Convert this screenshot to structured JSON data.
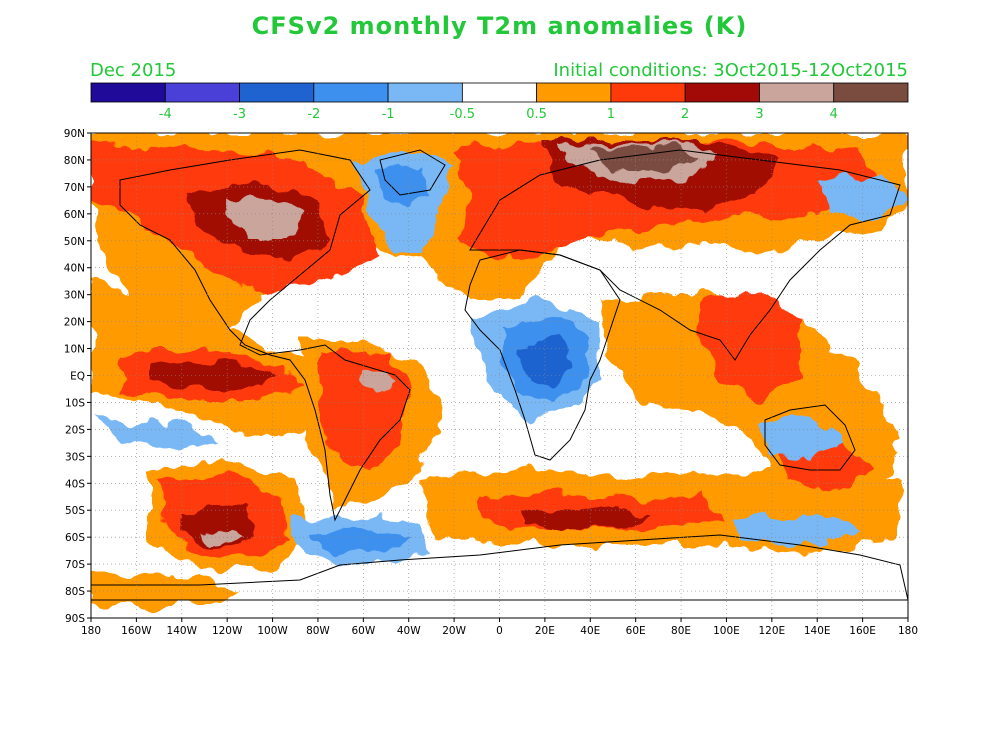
{
  "title": "CFSv2 monthly T2m anomalies (K)",
  "month_label": "Dec 2015",
  "initial_conditions": "Initial conditions: 3Oct2015-12Oct2015",
  "colorbar": {
    "bins": [
      {
        "color": "#1f0a9a"
      },
      {
        "color": "#4a3fd6"
      },
      {
        "color": "#1f63d0"
      },
      {
        "color": "#3d90ee"
      },
      {
        "color": "#7ab8f5"
      },
      {
        "color": "#ffffff"
      },
      {
        "color": "#ff9a00"
      },
      {
        "color": "#ff3a0a"
      },
      {
        "color": "#a10a06"
      },
      {
        "color": "#c9a59c"
      },
      {
        "color": "#7a4c40"
      }
    ],
    "labels": [
      "-4",
      "-3",
      "-2",
      "-1",
      "-0.5",
      "0.5",
      "1",
      "2",
      "3",
      "4"
    ]
  },
  "axes": {
    "lat_labels": [
      "90N",
      "80N",
      "70N",
      "60N",
      "50N",
      "40N",
      "30N",
      "20N",
      "10N",
      "EQ",
      "10S",
      "20S",
      "30S",
      "40S",
      "50S",
      "60S",
      "70S",
      "80S",
      "90S"
    ],
    "lon_labels": [
      "180",
      "160W",
      "140W",
      "120W",
      "100W",
      "80W",
      "60W",
      "40W",
      "20W",
      "0",
      "20E",
      "40E",
      "60E",
      "80E",
      "100E",
      "120E",
      "140E",
      "160E",
      "180"
    ]
  }
}
